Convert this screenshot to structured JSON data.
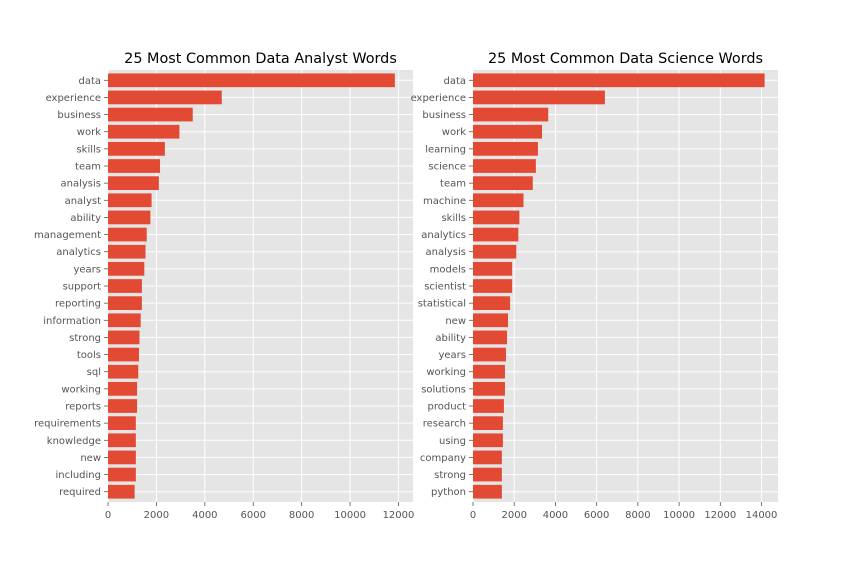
{
  "chart_data": [
    {
      "type": "bar",
      "orientation": "horizontal",
      "title": "25 Most Common Data Analyst Words",
      "xlabel": "",
      "ylabel": "",
      "xlim": [
        0,
        12600
      ],
      "xticks": [
        0,
        2000,
        4000,
        6000,
        8000,
        10000,
        12000
      ],
      "grid": true,
      "bar_color": "#E24A33",
      "background_color": "#E5E5E5",
      "categories": [
        "data",
        "experience",
        "business",
        "work",
        "skills",
        "team",
        "analysis",
        "analyst",
        "ability",
        "management",
        "analytics",
        "years",
        "support",
        "reporting",
        "information",
        "strong",
        "tools",
        "sql",
        "working",
        "reports",
        "requirements",
        "knowledge",
        "new",
        "including",
        "required"
      ],
      "values": [
        11850,
        4700,
        3500,
        2950,
        2350,
        2150,
        2100,
        1800,
        1750,
        1600,
        1550,
        1500,
        1400,
        1400,
        1350,
        1300,
        1280,
        1250,
        1200,
        1200,
        1150,
        1150,
        1150,
        1150,
        1100
      ]
    },
    {
      "type": "bar",
      "orientation": "horizontal",
      "title": "25 Most Common Data Science Words",
      "xlabel": "",
      "ylabel": "",
      "xlim": [
        0,
        14800
      ],
      "xticks": [
        0,
        2000,
        4000,
        6000,
        8000,
        10000,
        12000,
        14000
      ],
      "grid": true,
      "bar_color": "#E24A33",
      "background_color": "#E5E5E5",
      "categories": [
        "data",
        "experience",
        "business",
        "work",
        "learning",
        "science",
        "team",
        "machine",
        "skills",
        "analytics",
        "analysis",
        "models",
        "scientist",
        "statistical",
        "new",
        "ability",
        "years",
        "working",
        "solutions",
        "product",
        "research",
        "using",
        "company",
        "strong",
        "python"
      ],
      "values": [
        14150,
        6400,
        3650,
        3350,
        3150,
        3050,
        2900,
        2450,
        2250,
        2200,
        2100,
        1900,
        1900,
        1800,
        1700,
        1650,
        1600,
        1550,
        1550,
        1500,
        1450,
        1450,
        1400,
        1400,
        1400
      ]
    }
  ]
}
